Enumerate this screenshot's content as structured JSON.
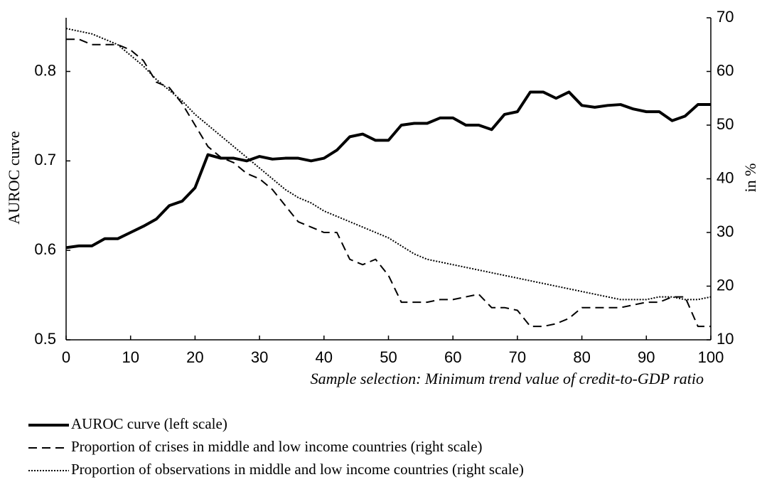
{
  "chart_data": {
    "type": "line",
    "x_label": "Sample selection: Minimum trend value of credit-to-GDP ratio",
    "y_label": "AUROC curve",
    "y2_label": "in %",
    "x": [
      0,
      2,
      4,
      6,
      8,
      10,
      12,
      14,
      16,
      18,
      20,
      22,
      24,
      26,
      28,
      30,
      32,
      34,
      36,
      38,
      40,
      42,
      44,
      46,
      48,
      50,
      52,
      54,
      56,
      58,
      60,
      62,
      64,
      66,
      68,
      70,
      72,
      74,
      76,
      78,
      80,
      82,
      84,
      86,
      88,
      90,
      92,
      94,
      96,
      98,
      100
    ],
    "xlim": [
      0,
      100
    ],
    "xticks": [
      0,
      10,
      20,
      30,
      40,
      50,
      60,
      70,
      80,
      90,
      100
    ],
    "ylim": [
      0.5,
      0.86
    ],
    "yticks": [
      0.5,
      0.6,
      0.7,
      0.8
    ],
    "y2lim": [
      10,
      70
    ],
    "y2ticks": [
      10,
      20,
      30,
      40,
      50,
      60,
      70
    ],
    "series": [
      {
        "name": "AUROC curve (left scale)",
        "color": "#000000",
        "style": "solid",
        "values": [
          0.603,
          0.605,
          0.605,
          0.613,
          0.613,
          0.62,
          0.627,
          0.635,
          0.65,
          0.655,
          0.67,
          0.707,
          0.703,
          0.703,
          0.7,
          0.705,
          0.702,
          0.703,
          0.703,
          0.7,
          0.703,
          0.712,
          0.727,
          0.73,
          0.723,
          0.723,
          0.74,
          0.742,
          0.742,
          0.748,
          0.748,
          0.74,
          0.74,
          0.735,
          0.752,
          0.755,
          0.777,
          0.777,
          0.77,
          0.777,
          0.762,
          0.76,
          0.762,
          0.763,
          0.758,
          0.755,
          0.755,
          0.745,
          0.75,
          0.763,
          0.763
        ]
      },
      {
        "name": "Proportion of crises in middle and low income countries (right scale)",
        "color": "#000000",
        "style": "dashed",
        "axis": "y2",
        "values": [
          66,
          66,
          65,
          65,
          65,
          64,
          62,
          58,
          57,
          54,
          50,
          46,
          44,
          43,
          41,
          40,
          38,
          35,
          32,
          31,
          30,
          30,
          25,
          24,
          25,
          22,
          17,
          17,
          17,
          17.5,
          17.5,
          18,
          18.5,
          16,
          16,
          15.5,
          12.5,
          12.5,
          13,
          14,
          16,
          16,
          16,
          16,
          16.5,
          17,
          17,
          18,
          18,
          12.5,
          12.5
        ]
      },
      {
        "name": "Proportion of observations in middle and low income countries (right scale)",
        "color": "#000000",
        "style": "dotted",
        "axis": "y2",
        "values": [
          68,
          67.5,
          67,
          66,
          65,
          63,
          61,
          58.5,
          56.5,
          54.5,
          52,
          50,
          48,
          46,
          44,
          42,
          40,
          38,
          36.5,
          35.5,
          34,
          33,
          32,
          31,
          30,
          29,
          27.5,
          26,
          25,
          24.5,
          24,
          23.5,
          23,
          22.5,
          22,
          21.5,
          21,
          20.5,
          20,
          19.5,
          19,
          18.5,
          18,
          17.5,
          17.5,
          17.5,
          18,
          18,
          17.5,
          17.5,
          18
        ]
      }
    ]
  }
}
